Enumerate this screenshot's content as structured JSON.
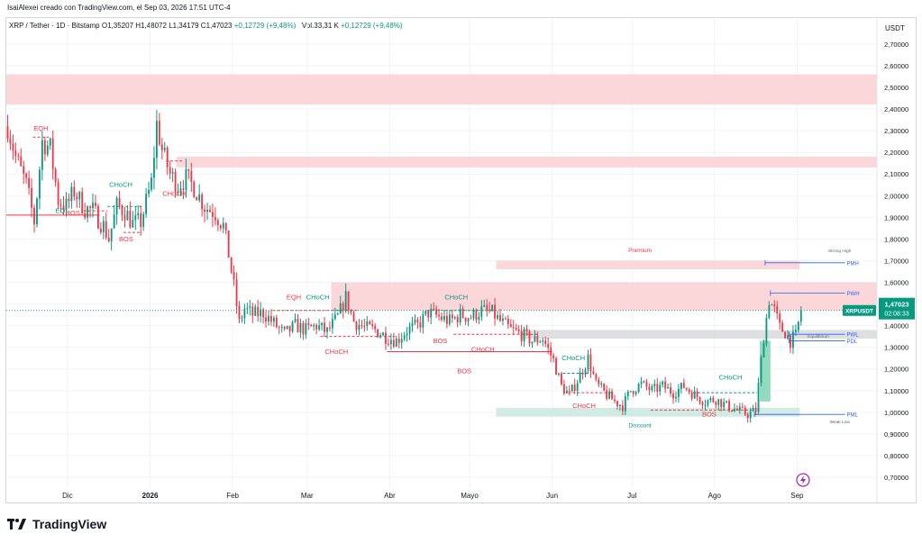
{
  "header": {
    "credit": "IsaiAlexei creado con TradingView.com, el Sep 03, 2026 17:51 UTC-4"
  },
  "legend": {
    "symbol": "XRP / Tether · 1D · Bitstamp",
    "open": "O1,35207",
    "high": "H1,48072",
    "low": "L1,34179",
    "close": "C1,47023",
    "change": "+0,12729 (+9,48%)",
    "volume": "Vol.33,31 K",
    "vol_change": "+0,12729 (+9,48%)"
  },
  "axis": {
    "currency": "USDT"
  },
  "footer": {
    "brand": "TradingView"
  },
  "colors": {
    "up": "#089981",
    "down": "#f23645",
    "supply": "#fbd0d3",
    "demand": "#c9e8df",
    "gray_zone": "#d8d9dc",
    "level": "#2962ff",
    "annotation_up": "#089981",
    "annotation_down": "#f23645"
  },
  "chart_data": {
    "type": "candlestick",
    "symbol": "XRPUSDT",
    "timeframe": "1D",
    "y_ticks": [
      "2,70000",
      "2,60000",
      "2,50000",
      "2,40000",
      "2,30000",
      "2,20000",
      "2,10000",
      "2,00000",
      "1,90000",
      "1,80000",
      "1,70000",
      "1,60000",
      "1,50000",
      "1,40000",
      "1,30000",
      "1,20000",
      "1,10000",
      "1,00000",
      "0,90000",
      "0,80000",
      "0,70000"
    ],
    "y_tick_values": [
      2.7,
      2.6,
      2.5,
      2.4,
      2.3,
      2.2,
      2.1,
      2.0,
      1.9,
      1.8,
      1.7,
      1.6,
      1.5,
      1.4,
      1.3,
      1.2,
      1.1,
      1.0,
      0.9,
      0.8,
      0.7
    ],
    "ylim": [
      0.65,
      2.82
    ],
    "x_ticks": [
      {
        "label": "Dic",
        "day": 23
      },
      {
        "label": "2026",
        "day": 54
      },
      {
        "label": "Feb",
        "day": 85
      },
      {
        "label": "Mar",
        "day": 113
      },
      {
        "label": "Abr",
        "day": 144
      },
      {
        "label": "Mayo",
        "day": 174
      },
      {
        "label": "Jun",
        "day": 205
      },
      {
        "label": "Jul",
        "day": 235
      },
      {
        "label": "Ago",
        "day": 266
      },
      {
        "label": "Sep",
        "day": 297
      }
    ],
    "xlim": [
      0,
      327
    ],
    "last_price": {
      "label": "XRPUSDT",
      "value": 1.47023,
      "text": "1,47023",
      "countdown": "02:08:33"
    },
    "anchors": [
      [
        0,
        2.32
      ],
      [
        3,
        2.18
      ],
      [
        7,
        2.05
      ],
      [
        10,
        1.88
      ],
      [
        13,
        2.25
      ],
      [
        16,
        2.22
      ],
      [
        19,
        1.98
      ],
      [
        22,
        1.95
      ],
      [
        25,
        2.02
      ],
      [
        29,
        1.94
      ],
      [
        32,
        1.93
      ],
      [
        36,
        1.86
      ],
      [
        38,
        1.8
      ],
      [
        41,
        1.95
      ],
      [
        44,
        1.93
      ],
      [
        47,
        1.87
      ],
      [
        50,
        1.88
      ],
      [
        54,
        2.06
      ],
      [
        56,
        2.33
      ],
      [
        58,
        2.21
      ],
      [
        61,
        2.1
      ],
      [
        64,
        2.05
      ],
      [
        67,
        2.08
      ],
      [
        70,
        2.04
      ],
      [
        74,
        1.95
      ],
      [
        78,
        1.92
      ],
      [
        81,
        1.86
      ],
      [
        83,
        1.73
      ],
      [
        85,
        1.58
      ],
      [
        87,
        1.41
      ],
      [
        89,
        1.48
      ],
      [
        92,
        1.45
      ],
      [
        96,
        1.46
      ],
      [
        100,
        1.41
      ],
      [
        104,
        1.36
      ],
      [
        108,
        1.4
      ],
      [
        112,
        1.38
      ],
      [
        116,
        1.4
      ],
      [
        120,
        1.37
      ],
      [
        124,
        1.44
      ],
      [
        127,
        1.53
      ],
      [
        130,
        1.42
      ],
      [
        134,
        1.39
      ],
      [
        138,
        1.38
      ],
      [
        142,
        1.35
      ],
      [
        146,
        1.33
      ],
      [
        150,
        1.38
      ],
      [
        154,
        1.4
      ],
      [
        158,
        1.46
      ],
      [
        162,
        1.44
      ],
      [
        166,
        1.42
      ],
      [
        170,
        1.45
      ],
      [
        174,
        1.44
      ],
      [
        178,
        1.47
      ],
      [
        182,
        1.46
      ],
      [
        185,
        1.42
      ],
      [
        189,
        1.38
      ],
      [
        193,
        1.36
      ],
      [
        197,
        1.33
      ],
      [
        201,
        1.34
      ],
      [
        205,
        1.24
      ],
      [
        208,
        1.12
      ],
      [
        211,
        1.08
      ],
      [
        215,
        1.17
      ],
      [
        218,
        1.25
      ],
      [
        221,
        1.13
      ],
      [
        225,
        1.08
      ],
      [
        228,
        1.05
      ],
      [
        231,
        1.03
      ],
      [
        234,
        1.1
      ],
      [
        238,
        1.13
      ],
      [
        242,
        1.1
      ],
      [
        246,
        1.12
      ],
      [
        250,
        1.09
      ],
      [
        254,
        1.12
      ],
      [
        258,
        1.08
      ],
      [
        262,
        1.05
      ],
      [
        266,
        1.06
      ],
      [
        270,
        1.03
      ],
      [
        274,
        1.01
      ],
      [
        278,
        0.99
      ],
      [
        281,
        1.01
      ],
      [
        284,
        1.35
      ],
      [
        286,
        1.52
      ],
      [
        288,
        1.47
      ],
      [
        290,
        1.39
      ],
      [
        292,
        1.37
      ],
      [
        294,
        1.33
      ],
      [
        296,
        1.35
      ],
      [
        298,
        1.47
      ]
    ],
    "zones": [
      {
        "kind": "supply",
        "from": 0,
        "to": 327,
        "low": 2.42,
        "high": 2.56
      },
      {
        "kind": "supply",
        "from": 64,
        "to": 327,
        "low": 2.13,
        "high": 2.18
      },
      {
        "kind": "supply",
        "from": 184,
        "to": 298,
        "low": 1.66,
        "high": 1.7
      },
      {
        "kind": "supply",
        "from": 122,
        "to": 327,
        "low": 1.47,
        "high": 1.6
      },
      {
        "kind": "gray",
        "from": 193,
        "to": 327,
        "low": 1.34,
        "high": 1.38
      },
      {
        "kind": "demand",
        "from": 184,
        "to": 298,
        "low": 0.98,
        "high": 1.02
      },
      {
        "kind": "demand",
        "from": 283,
        "to": 287,
        "low": 1.05,
        "high": 1.33
      }
    ],
    "structure_lines": [
      {
        "from": 0,
        "to": 35,
        "y": 1.91,
        "color": "down",
        "dash": false
      },
      {
        "from": 10,
        "to": 16,
        "y": 2.27,
        "color": "down",
        "dash": true
      },
      {
        "from": 38,
        "to": 51,
        "y": 1.95,
        "color": "up",
        "dash": true
      },
      {
        "from": 29,
        "to": 38,
        "y": 1.93,
        "color": "down",
        "dash": true
      },
      {
        "from": 44,
        "to": 51,
        "y": 1.83,
        "color": "down",
        "dash": true
      },
      {
        "from": 60,
        "to": 66,
        "y": 2.16,
        "color": "down",
        "dash": true
      },
      {
        "from": 100,
        "to": 127,
        "y": 1.47,
        "color": "down",
        "dash": true
      },
      {
        "from": 124,
        "to": 132,
        "y": 1.47,
        "color": "up",
        "dash": true
      },
      {
        "from": 118,
        "to": 146,
        "y": 1.35,
        "color": "down",
        "dash": true
      },
      {
        "from": 143,
        "to": 205,
        "y": 1.28,
        "color": "down",
        "dash": false
      },
      {
        "from": 158,
        "to": 184,
        "y": 1.47,
        "color": "up",
        "dash": true
      },
      {
        "from": 168,
        "to": 200,
        "y": 1.36,
        "color": "down",
        "dash": true
      },
      {
        "from": 209,
        "to": 219,
        "y": 1.18,
        "color": "up",
        "dash": true
      },
      {
        "from": 211,
        "to": 228,
        "y": 1.09,
        "color": "down",
        "dash": true
      },
      {
        "from": 258,
        "to": 282,
        "y": 1.09,
        "color": "up",
        "dash": true
      },
      {
        "from": 242,
        "to": 280,
        "y": 1.01,
        "color": "down",
        "dash": true
      }
    ],
    "levels": [
      {
        "from": 285,
        "to": 315,
        "y": 1.69,
        "label": "PMH"
      },
      {
        "from": 287,
        "to": 315,
        "y": 1.55,
        "label": "PWH"
      },
      {
        "from": 294,
        "to": 315,
        "y": 1.36,
        "label": "PWL"
      },
      {
        "from": 294,
        "to": 315,
        "y": 1.33,
        "label": "PDL"
      },
      {
        "from": 281,
        "to": 315,
        "y": 0.99,
        "label": "PML"
      }
    ],
    "annotations": [
      {
        "text": "EQH",
        "day": 13,
        "y": 2.3,
        "color": "down"
      },
      {
        "text": "EQL",
        "day": 21,
        "y": 1.92,
        "color": "up"
      },
      {
        "text": "BOS",
        "day": 25,
        "y": 1.91,
        "color": "down"
      },
      {
        "text": "CHoCH",
        "day": 43,
        "y": 2.04,
        "color": "up"
      },
      {
        "text": "BOS",
        "day": 45,
        "y": 1.79,
        "color": "down"
      },
      {
        "text": "CHoCH",
        "day": 63,
        "y": 2.0,
        "color": "down"
      },
      {
        "text": "EQH",
        "day": 108,
        "y": 1.52,
        "color": "down"
      },
      {
        "text": "CHoCH",
        "day": 117,
        "y": 1.52,
        "color": "up"
      },
      {
        "text": "CHoCH",
        "day": 124,
        "y": 1.27,
        "color": "down"
      },
      {
        "text": "CHoCH",
        "day": 169,
        "y": 1.52,
        "color": "up"
      },
      {
        "text": "BOS",
        "day": 163,
        "y": 1.32,
        "color": "down"
      },
      {
        "text": "CHoCH",
        "day": 179,
        "y": 1.28,
        "color": "down"
      },
      {
        "text": "BOS",
        "day": 172,
        "y": 1.18,
        "color": "down"
      },
      {
        "text": "Premium",
        "day": 238,
        "y": 1.74,
        "color": "down"
      },
      {
        "text": "CHoCH",
        "day": 213,
        "y": 1.24,
        "color": "up"
      },
      {
        "text": "CHoCH",
        "day": 217,
        "y": 1.02,
        "color": "down"
      },
      {
        "text": "CHoCH",
        "day": 272,
        "y": 1.15,
        "color": "up"
      },
      {
        "text": "BOS",
        "day": 264,
        "y": 0.98,
        "color": "down"
      },
      {
        "text": "Discount",
        "day": 238,
        "y": 0.93,
        "color": "up"
      }
    ],
    "small_labels": [
      {
        "text": "Strong High",
        "day": 313,
        "y": 1.74
      },
      {
        "text": "Equilibrium",
        "day": 305,
        "y": 1.345
      },
      {
        "text": "Weak Low",
        "day": 313,
        "y": 0.95
      }
    ]
  }
}
